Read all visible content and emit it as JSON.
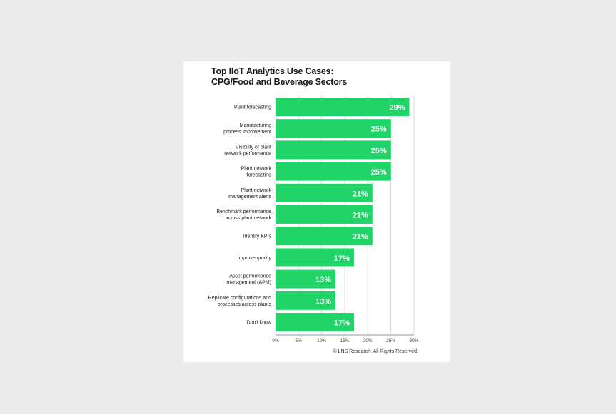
{
  "title_line1": "Top IIoT Analytics Use Cases:",
  "title_line2": "CPG/Food and Beverage Sectors",
  "copyright": "© LNS Research. All Rights Reserved.",
  "colors": {
    "bar": "#21d467",
    "bar_label": "#ffffff",
    "grid": "#d9d9d9",
    "background": "#ebebeb",
    "card": "#ffffff"
  },
  "chart_data": {
    "type": "bar",
    "orientation": "horizontal",
    "categories": [
      [
        "Plant forecasting"
      ],
      [
        "Manufacturing",
        "process improvement"
      ],
      [
        "Visibility of plant",
        "network performance"
      ],
      [
        "Plant network",
        "forecasting"
      ],
      [
        "Plant network",
        "management alerts"
      ],
      [
        "Benchmark performance",
        "across plant network"
      ],
      [
        "Identify KPIs"
      ],
      [
        "Improve quality"
      ],
      [
        "Asset performance",
        "management (APM)"
      ],
      [
        "Replicate configurations and",
        "processes across plants"
      ],
      [
        "Don't know"
      ]
    ],
    "values": [
      29,
      25,
      25,
      25,
      21,
      21,
      21,
      17,
      13,
      13,
      17
    ],
    "data_labels": [
      "29%",
      "25%",
      "25%",
      "25%",
      "21%",
      "21%",
      "21%",
      "17%",
      "13%",
      "13%",
      "17%"
    ],
    "xlim": [
      0,
      30
    ],
    "ticks": [
      0,
      5,
      10,
      15,
      20,
      25,
      30
    ],
    "tick_labels": [
      "0%",
      "5%",
      "10%",
      "15%",
      "20%",
      "25%",
      "30%"
    ],
    "grid": true,
    "legend": "none"
  }
}
